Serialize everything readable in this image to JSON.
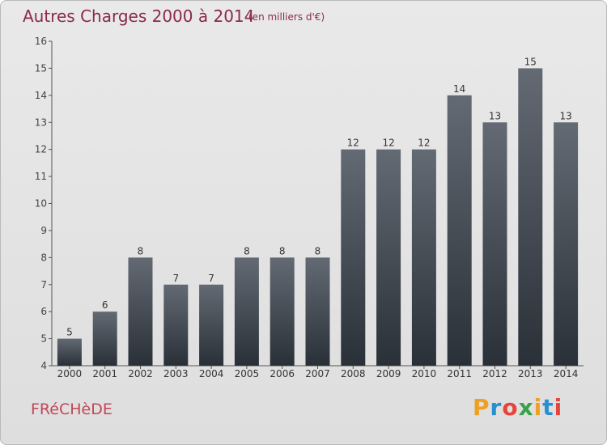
{
  "header": {
    "title": "Autres Charges 2000 à 2014",
    "subtitle": "(en milliers d'€)"
  },
  "footer": {
    "commune": "FRéCHèDE",
    "logo_letters": [
      "P",
      "r",
      "o",
      "x",
      "i",
      "t",
      "i"
    ],
    "logo_colors": [
      "#f0a020",
      "#2a8fd0",
      "#e8443a",
      "#3aa24a",
      "#f0a020",
      "#2a8fd0",
      "#e8443a"
    ]
  },
  "colors": {
    "bar_top": "#636a73",
    "bar_bottom": "#2a3038",
    "axis": "#444444",
    "grid": "#c8c8c8",
    "title": "#8a2a45"
  },
  "chart_data": {
    "type": "bar",
    "title": "Autres Charges 2000 à 2014",
    "subtitle": "(en milliers d'€)",
    "xlabel": "",
    "ylabel": "",
    "categories": [
      "2000",
      "2001",
      "2002",
      "2003",
      "2004",
      "2005",
      "2006",
      "2007",
      "2008",
      "2009",
      "2010",
      "2011",
      "2012",
      "2013",
      "2014"
    ],
    "values": [
      5,
      6,
      8,
      7,
      7,
      8,
      8,
      8,
      12,
      12,
      12,
      14,
      13,
      15,
      13
    ],
    "ylim": [
      4,
      16
    ],
    "yticks": [
      4,
      5,
      6,
      7,
      8,
      9,
      10,
      11,
      12,
      13,
      14,
      15,
      16
    ],
    "grid": false,
    "data_labels": true
  }
}
